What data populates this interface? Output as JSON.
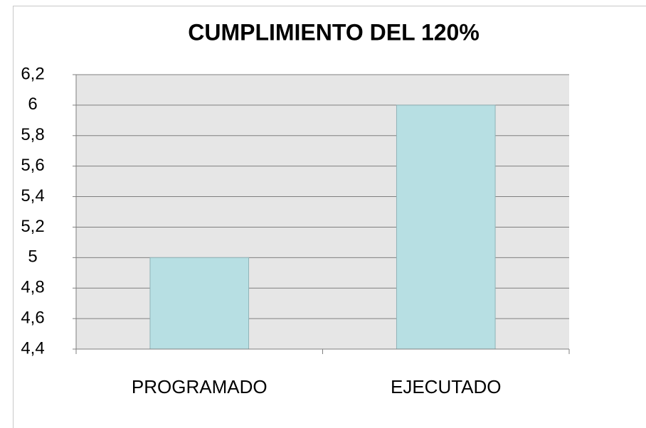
{
  "chart_data": {
    "type": "bar",
    "title": "CUMPLIMIENTO DEL 120%",
    "categories": [
      "PROGRAMADO",
      "EJECUTADO"
    ],
    "values": [
      5,
      6
    ],
    "color": "#b7dfe3",
    "ylim": [
      4.4,
      6.2
    ],
    "yticks": [
      {
        "value": 4.4,
        "label": "4,4"
      },
      {
        "value": 4.6,
        "label": "4,6"
      },
      {
        "value": 4.8,
        "label": "4,8"
      },
      5,
      {
        "value": 5.2,
        "label": "5,2"
      },
      {
        "value": 5.4,
        "label": "5,4"
      },
      {
        "value": 5.6,
        "label": "5,6"
      },
      {
        "value": 5.8,
        "label": "5,8"
      },
      6,
      {
        "value": 6.2,
        "label": "6,2"
      }
    ],
    "grid": true
  }
}
